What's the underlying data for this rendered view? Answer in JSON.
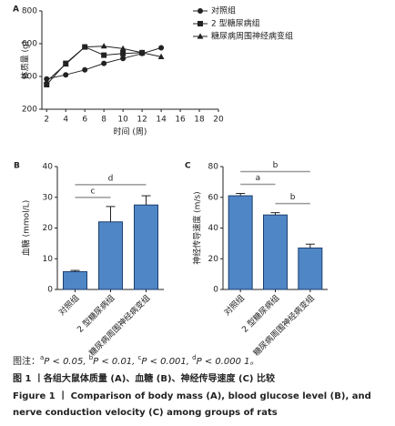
{
  "chart_data": [
    {
      "type": "line",
      "panel": "A",
      "x_label": "时间 (周)",
      "y_label": "体质量 (g)",
      "x": [
        2,
        4,
        6,
        8,
        10,
        12,
        14
      ],
      "xlim": [
        1.5,
        20
      ],
      "xticks": [
        2,
        4,
        6,
        8,
        10,
        12,
        14,
        16,
        18,
        20
      ],
      "ylim": [
        200,
        800
      ],
      "yticks": [
        200,
        400,
        600,
        800
      ],
      "series": [
        {
          "name": "对照组",
          "color": "#222222",
          "marker": "circle",
          "values": [
            385,
            410,
            440,
            480,
            510,
            540,
            575
          ]
        },
        {
          "name": "2 型糖尿病组",
          "color": "#222222",
          "marker": "square",
          "values": [
            350,
            480,
            580,
            530,
            540,
            545,
            null
          ]
        },
        {
          "name": "糖尿病周围神经病变组",
          "color": "#222222",
          "marker": "triangle",
          "values": [
            370,
            475,
            580,
            585,
            570,
            545,
            520
          ]
        }
      ]
    },
    {
      "type": "bar",
      "panel": "B",
      "y_label": "血糖 (mmol/L)",
      "color": "#4f86c6",
      "categories": [
        "对照组",
        "2 型糖尿病组",
        "糖尿病周围神经病变组"
      ],
      "values": [
        5.8,
        22,
        27.5
      ],
      "errors": [
        0.4,
        5,
        3
      ],
      "ylim": [
        0,
        40
      ],
      "yticks": [
        0,
        10,
        20,
        30,
        40
      ],
      "annotations": [
        {
          "label": "c",
          "pair": [
            0,
            1
          ]
        },
        {
          "label": "d",
          "pair": [
            0,
            2
          ]
        }
      ]
    },
    {
      "type": "bar",
      "panel": "C",
      "y_label": "神经传导速度 (m/s)",
      "color": "#4f86c6",
      "categories": [
        "对照组",
        "2 型糖尿病组",
        "糖尿病周围神经病变组"
      ],
      "values": [
        61,
        48.5,
        27
      ],
      "errors": [
        1.5,
        1.5,
        2.5
      ],
      "ylim": [
        0,
        80
      ],
      "yticks": [
        0,
        20,
        40,
        60,
        80
      ],
      "annotations": [
        {
          "label": "b",
          "pair": [
            1,
            2
          ]
        },
        {
          "label": "a",
          "pair": [
            0,
            1
          ]
        },
        {
          "label": "b",
          "pair": [
            0,
            2
          ]
        }
      ]
    }
  ],
  "caption": {
    "note_lead": "图注：",
    "note": [
      {
        "sup": "a",
        "text": "P < 0.05, "
      },
      {
        "sup": "b",
        "text": "P < 0.01, "
      },
      {
        "sup": "c",
        "text": "P < 0.001, "
      },
      {
        "sup": "d",
        "text": "P < 0.000 1。"
      }
    ],
    "title_cn": "图 1 丨各组大鼠体质量 (A)、血糖 (B)、神经传导速度 (C) 比较",
    "title_en_1": "Figure 1  丨  Comparison of body mass (A), blood glucose level (B), and",
    "title_en_2": "nerve conduction velocity (C) among groups of rats"
  }
}
